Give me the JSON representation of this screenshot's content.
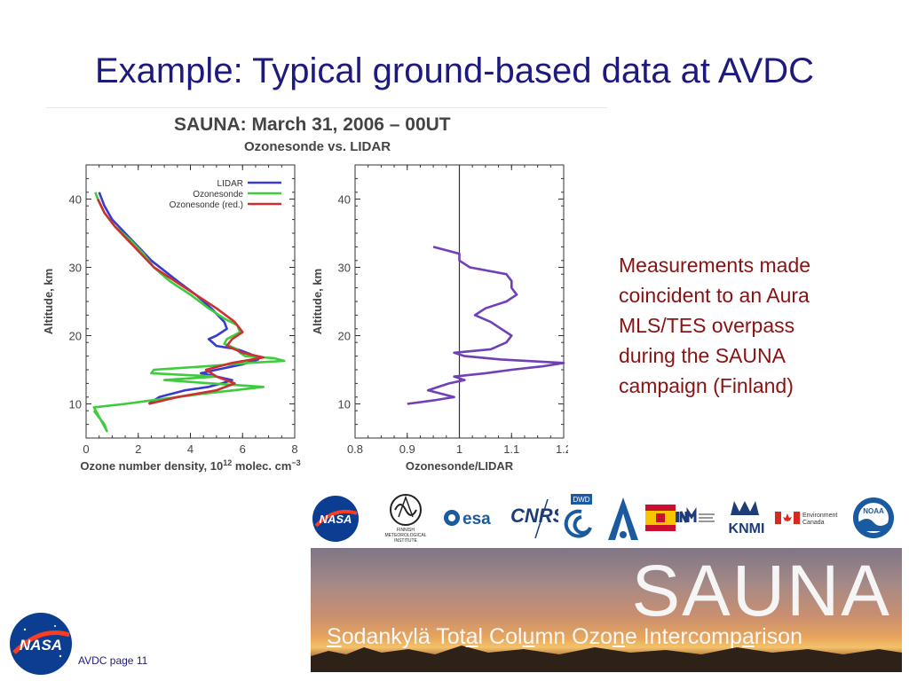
{
  "slide": {
    "title": "Example: Typical ground-based data at AVDC",
    "footer": "AVDC page 11"
  },
  "figure": {
    "title": "SAUNA: March 31, 2006 – 00UT",
    "subtitle": "Ozonesonde vs. LIDAR"
  },
  "side_text": [
    "Measurements made",
    "coincident to an Aura",
    "MLS/TES overpass",
    "during the SAUNA",
    "campaign (Finland)"
  ],
  "logos": {
    "nasa": "NASA",
    "fmi_lines": [
      "FINNISH",
      "METEOROLOGICAL",
      "INSTITUTE"
    ],
    "esa": "esa",
    "cnrs": "CNRS",
    "dwd": "DWD",
    "knmi": "KNMI",
    "ec_lines": [
      "Environment",
      "Canada"
    ],
    "noaa": "NOAA"
  },
  "banner": {
    "title": "SAUNA",
    "subtitle_parts": [
      {
        "t": "S",
        "u": true
      },
      {
        "t": "odankylä Tot",
        "u": false
      },
      {
        "t": "a",
        "u": true
      },
      {
        "t": "l Col",
        "u": false
      },
      {
        "t": "u",
        "u": true
      },
      {
        "t": "mn Ozo",
        "u": false
      },
      {
        "t": "n",
        "u": true
      },
      {
        "t": "e Intercomp",
        "u": false
      },
      {
        "t": "a",
        "u": true
      },
      {
        "t": "rison",
        "u": false
      }
    ]
  },
  "chart_data": [
    {
      "type": "line",
      "xlabel": "Ozone number density, 10",
      "xlabel_sup1": "12",
      "xlabel_mid": " molec. cm",
      "xlabel_sup2": "−3",
      "ylabel": "Altitude, km",
      "xlim": [
        0,
        8
      ],
      "ylim": [
        5,
        45
      ],
      "xticks": [
        0,
        2,
        4,
        6,
        8
      ],
      "yticks": [
        10,
        20,
        30,
        40
      ],
      "legend_position": "top-right",
      "series": [
        {
          "name": "LIDAR",
          "color": "#3a3ad0",
          "points": [
            [
              0.5,
              41
            ],
            [
              0.7,
              39
            ],
            [
              1.0,
              37
            ],
            [
              1.5,
              35
            ],
            [
              2.0,
              33
            ],
            [
              2.5,
              31
            ],
            [
              3.0,
              29.5
            ],
            [
              3.5,
              28
            ],
            [
              4.2,
              26
            ],
            [
              4.8,
              24
            ],
            [
              5.3,
              22
            ],
            [
              5.4,
              21
            ],
            [
              5.0,
              20
            ],
            [
              4.7,
              19.5
            ],
            [
              5.0,
              18.5
            ],
            [
              5.8,
              18
            ],
            [
              6.3,
              17.3
            ],
            [
              6.6,
              16.5
            ],
            [
              6.0,
              15.8
            ],
            [
              5.0,
              15
            ],
            [
              4.4,
              14.5
            ],
            [
              5.0,
              14
            ],
            [
              5.6,
              13.5
            ],
            [
              5.2,
              13
            ],
            [
              4.7,
              12.5
            ],
            [
              3.8,
              12
            ],
            [
              2.8,
              11
            ],
            [
              2.4,
              10
            ]
          ]
        },
        {
          "name": "Ozonesonde",
          "color": "#3ccc3c",
          "points": [
            [
              0.3,
              9
            ],
            [
              0.5,
              8
            ],
            [
              0.7,
              7
            ],
            [
              0.8,
              6
            ],
            [
              0.3,
              9.5
            ],
            [
              1.5,
              10
            ],
            [
              2.5,
              10.5
            ],
            [
              3.5,
              11
            ],
            [
              4.5,
              11.5
            ],
            [
              5.7,
              12
            ],
            [
              6.8,
              12.5
            ],
            [
              4.8,
              13
            ],
            [
              3.0,
              13.5
            ],
            [
              5.0,
              14
            ],
            [
              2.5,
              14.5
            ],
            [
              2.6,
              15
            ],
            [
              4.6,
              15.5
            ],
            [
              6.2,
              16
            ],
            [
              7.6,
              16.3
            ],
            [
              7.2,
              16.7
            ],
            [
              6.1,
              17
            ],
            [
              5.9,
              17.5
            ],
            [
              5.8,
              18
            ],
            [
              5.3,
              18.8
            ],
            [
              5.4,
              19.5
            ],
            [
              5.9,
              20.5
            ],
            [
              5.8,
              21.5
            ],
            [
              5.3,
              22.5
            ],
            [
              4.7,
              24
            ],
            [
              4.0,
              26
            ],
            [
              3.2,
              28
            ],
            [
              2.6,
              30
            ],
            [
              2.2,
              32
            ],
            [
              1.7,
              34
            ],
            [
              1.1,
              36
            ],
            [
              0.7,
              38
            ],
            [
              0.45,
              40
            ],
            [
              0.35,
              41
            ]
          ]
        },
        {
          "name": "Ozonesonde (red.)",
          "color": "#cc3030",
          "points": [
            [
              2.4,
              10
            ],
            [
              3.5,
              11
            ],
            [
              5.0,
              12
            ],
            [
              5.7,
              13
            ],
            [
              5.0,
              14
            ],
            [
              4.6,
              15
            ],
            [
              5.6,
              16
            ],
            [
              6.8,
              16.8
            ],
            [
              6.0,
              17.5
            ],
            [
              5.4,
              18.5
            ],
            [
              5.6,
              19.5
            ],
            [
              6.0,
              20.5
            ],
            [
              5.7,
              22
            ],
            [
              5.0,
              24
            ],
            [
              4.2,
              26
            ],
            [
              3.4,
              28
            ],
            [
              2.6,
              30
            ],
            [
              2.1,
              32
            ],
            [
              1.6,
              34
            ],
            [
              1.1,
              36
            ],
            [
              0.7,
              38
            ],
            [
              0.45,
              40
            ]
          ]
        }
      ]
    },
    {
      "type": "line",
      "xlabel": "Ozonesonde/LIDAR",
      "ylabel": "Altitude, km",
      "xlim": [
        0.8,
        1.2
      ],
      "ylim": [
        5,
        45
      ],
      "xticks": [
        0.8,
        0.9,
        1.0,
        1.1,
        1.2
      ],
      "yticks": [
        10,
        20,
        30,
        40
      ],
      "reference_x": 1.0,
      "series": [
        {
          "color": "#7040b8",
          "points": [
            [
              0.9,
              10
            ],
            [
              0.95,
              10.5
            ],
            [
              0.99,
              11
            ],
            [
              0.94,
              12
            ],
            [
              0.98,
              13
            ],
            [
              1.01,
              13.5
            ],
            [
              0.99,
              14
            ],
            [
              1.05,
              14.5
            ],
            [
              1.1,
              15
            ],
            [
              1.16,
              15.5
            ],
            [
              1.2,
              16
            ],
            [
              1.08,
              16.5
            ],
            [
              1.01,
              17
            ],
            [
              0.99,
              17.5
            ],
            [
              1.06,
              18
            ],
            [
              1.09,
              19
            ],
            [
              1.1,
              20
            ],
            [
              1.08,
              21
            ],
            [
              1.06,
              22
            ],
            [
              1.03,
              23
            ],
            [
              1.05,
              24
            ],
            [
              1.09,
              25
            ],
            [
              1.11,
              26
            ],
            [
              1.1,
              27
            ],
            [
              1.1,
              28
            ],
            [
              1.09,
              29
            ],
            [
              1.02,
              30
            ],
            [
              1.0,
              31
            ],
            [
              1.0,
              32
            ],
            [
              0.95,
              33
            ]
          ]
        }
      ]
    }
  ]
}
